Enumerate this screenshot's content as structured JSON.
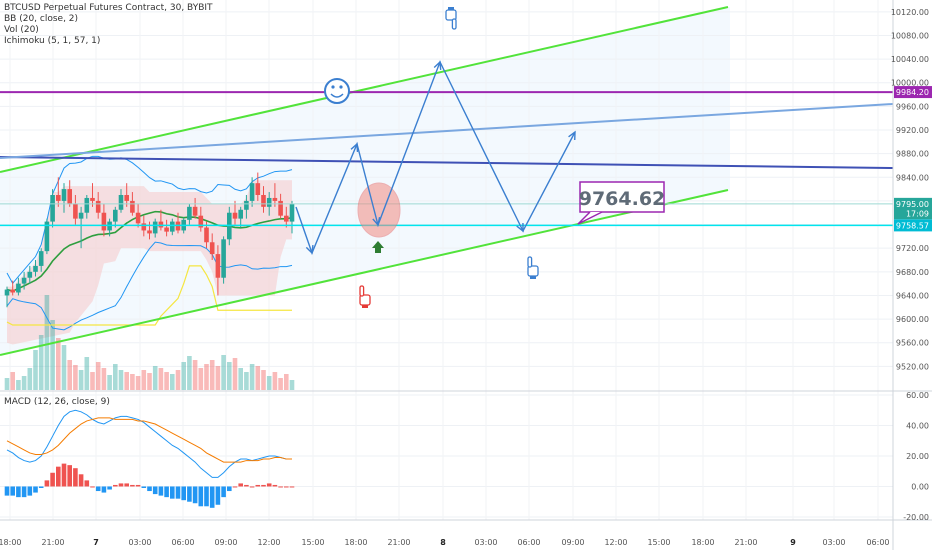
{
  "legend": {
    "symbol": "BTCUSD Perpetual Futures Contract, 30, BYBIT",
    "bb": "BB (20, close, 2)",
    "vol": "Vol (20)",
    "ichimoku": "Ichimoku (5, 1, 57, 1)",
    "macd": "MACD (12, 26, close, 9)"
  },
  "colors": {
    "channel": "#52e33a",
    "purple_line": "#9c27b0",
    "blue_line": "#3f51b5",
    "light_blue_line": "#7aa7e0",
    "cyan_line": "#00e5ee",
    "arrow": "#3b7fd0",
    "up_candle": "#26a69a",
    "down_candle": "#ef5350",
    "bb_basis": "#2e9e3e",
    "bb_band": "#2196f3",
    "ichimoku_line": "#f5e642",
    "macd_line": "#2196f3",
    "signal_line": "#f57c00"
  },
  "icons": [
    "smiley-face-icon",
    "pointing-hand-down-icon",
    "pointing-hand-up-icon",
    "pointing-hand-red-icon",
    "up-arrow-icon"
  ],
  "chart_data": [
    {
      "type": "candlestick",
      "ylim": [
        9480,
        10140
      ],
      "y_ticks": [
        "10120.00",
        "10080.00",
        "10040.00",
        "10000.00",
        "9960.00",
        "9920.00",
        "9880.00",
        "9840.00",
        "9800.00",
        "9760.00",
        "9720.00",
        "9680.00",
        "9640.00",
        "9600.00",
        "9560.00",
        "9520.00"
      ],
      "price_labels": [
        {
          "text": "9984.20",
          "value": 9984.2,
          "color": "#9c27b0"
        },
        {
          "text": "9795.00",
          "value": 9795,
          "color": "#26a69a"
        },
        {
          "text": "17:09",
          "value": 9779,
          "color": "#26a69a"
        },
        {
          "text": "9758.57",
          "value": 9758.57,
          "color": "#00bcd4"
        }
      ],
      "annotation": {
        "text": "9764.62",
        "value": 9764.62
      },
      "x_labels": [
        "18:00",
        "21:00",
        "7",
        "03:00",
        "06:00",
        "09:00",
        "12:00",
        "15:00",
        "18:00",
        "21:00",
        "8",
        "03:00",
        "06:00",
        "09:00",
        "12:00",
        "15:00",
        "18:00",
        "21:00",
        "9",
        "03:00",
        "06:00"
      ],
      "candles": [
        [
          9640,
          9655,
          9620,
          9650
        ],
        [
          9650,
          9665,
          9640,
          9645
        ],
        [
          9645,
          9670,
          9640,
          9660
        ],
        [
          9660,
          9680,
          9650,
          9670
        ],
        [
          9670,
          9690,
          9660,
          9680
        ],
        [
          9680,
          9700,
          9672,
          9690
        ],
        [
          9690,
          9720,
          9680,
          9715
        ],
        [
          9715,
          9770,
          9710,
          9765
        ],
        [
          9765,
          9820,
          9755,
          9810
        ],
        [
          9810,
          9840,
          9790,
          9800
        ],
        [
          9800,
          9830,
          9780,
          9820
        ],
        [
          9820,
          9835,
          9790,
          9795
        ],
        [
          9795,
          9810,
          9760,
          9770
        ],
        [
          9770,
          9790,
          9720,
          9780
        ],
        [
          9780,
          9810,
          9770,
          9805
        ],
        [
          9805,
          9830,
          9790,
          9800
        ],
        [
          9800,
          9815,
          9770,
          9780
        ],
        [
          9780,
          9795,
          9740,
          9750
        ],
        [
          9750,
          9770,
          9740,
          9765
        ],
        [
          9765,
          9790,
          9755,
          9785
        ],
        [
          9785,
          9820,
          9780,
          9810
        ],
        [
          9810,
          9830,
          9790,
          9800
        ],
        [
          9800,
          9815,
          9775,
          9780
        ],
        [
          9780,
          9795,
          9755,
          9762
        ],
        [
          9762,
          9775,
          9740,
          9750
        ],
        [
          9750,
          9765,
          9735,
          9745
        ],
        [
          9745,
          9770,
          9738,
          9765
        ],
        [
          9765,
          9785,
          9750,
          9755
        ],
        [
          9755,
          9768,
          9740,
          9748
        ],
        [
          9748,
          9770,
          9742,
          9765
        ],
        [
          9765,
          9780,
          9745,
          9750
        ],
        [
          9750,
          9772,
          9745,
          9768
        ],
        [
          9768,
          9795,
          9760,
          9790
        ],
        [
          9790,
          9805,
          9770,
          9775
        ],
        [
          9775,
          9790,
          9748,
          9755
        ],
        [
          9755,
          9765,
          9720,
          9730
        ],
        [
          9730,
          9745,
          9700,
          9710
        ],
        [
          9710,
          9725,
          9640,
          9670
        ],
        [
          9670,
          9740,
          9660,
          9735
        ],
        [
          9735,
          9790,
          9725,
          9780
        ],
        [
          9780,
          9800,
          9760,
          9770
        ],
        [
          9770,
          9790,
          9755,
          9785
        ],
        [
          9785,
          9810,
          9770,
          9800
        ],
        [
          9800,
          9840,
          9790,
          9830
        ],
        [
          9830,
          9848,
          9800,
          9810
        ],
        [
          9810,
          9825,
          9780,
          9790
        ],
        [
          9790,
          9815,
          9775,
          9805
        ],
        [
          9805,
          9830,
          9790,
          9800
        ],
        [
          9800,
          9812,
          9770,
          9775
        ],
        [
          9775,
          9790,
          9755,
          9765
        ],
        [
          9765,
          9800,
          9745,
          9795
        ]
      ],
      "volumes": [
        12,
        18,
        10,
        14,
        22,
        40,
        55,
        95,
        70,
        52,
        45,
        30,
        25,
        20,
        33,
        18,
        28,
        22,
        15,
        26,
        20,
        18,
        16,
        14,
        20,
        17,
        24,
        22,
        18,
        16,
        20,
        28,
        34,
        30,
        22,
        26,
        30,
        24,
        35,
        28,
        32,
        22,
        18,
        26,
        24,
        20,
        14,
        18,
        12,
        16,
        10
      ]
    },
    {
      "type": "line",
      "name": "MACD",
      "ylim": [
        -22,
        62
      ],
      "y_ticks": [
        "60.00",
        "40.00",
        "20.00",
        "0.00",
        "-20.00"
      ],
      "macd": [
        24,
        22,
        19,
        17,
        16,
        17,
        20,
        26,
        33,
        40,
        46,
        49,
        50,
        49,
        47,
        44,
        42,
        41,
        43,
        45,
        46,
        46,
        45,
        44,
        42,
        39,
        36,
        33,
        30,
        27,
        25,
        22,
        19,
        16,
        12,
        9,
        6,
        6,
        9,
        13,
        16,
        18,
        18,
        17,
        18,
        19,
        20,
        20,
        19,
        18,
        18
      ],
      "signal": [
        30,
        28,
        26,
        24,
        22,
        21,
        21,
        22,
        24,
        27,
        31,
        35,
        38,
        41,
        43,
        44,
        45,
        45,
        45,
        44,
        44,
        44,
        44,
        43,
        43,
        42,
        41,
        39,
        37,
        35,
        33,
        31,
        29,
        27,
        25,
        22,
        20,
        18,
        16,
        16,
        16,
        16,
        17,
        17,
        17,
        18,
        18,
        19,
        19,
        18,
        18
      ],
      "histogram": [
        -6,
        -6,
        -7,
        -7,
        -6,
        -4,
        -1,
        4,
        9,
        13,
        15,
        14,
        12,
        8,
        4,
        0,
        -3,
        -4,
        -2,
        1,
        2,
        2,
        1,
        1,
        -1,
        -3,
        -5,
        -6,
        -7,
        -8,
        -8,
        -9,
        -10,
        -11,
        -13,
        -13,
        -14,
        -12,
        -7,
        -3,
        0,
        2,
        1,
        0,
        1,
        1,
        2,
        1,
        0,
        0,
        0
      ]
    }
  ]
}
